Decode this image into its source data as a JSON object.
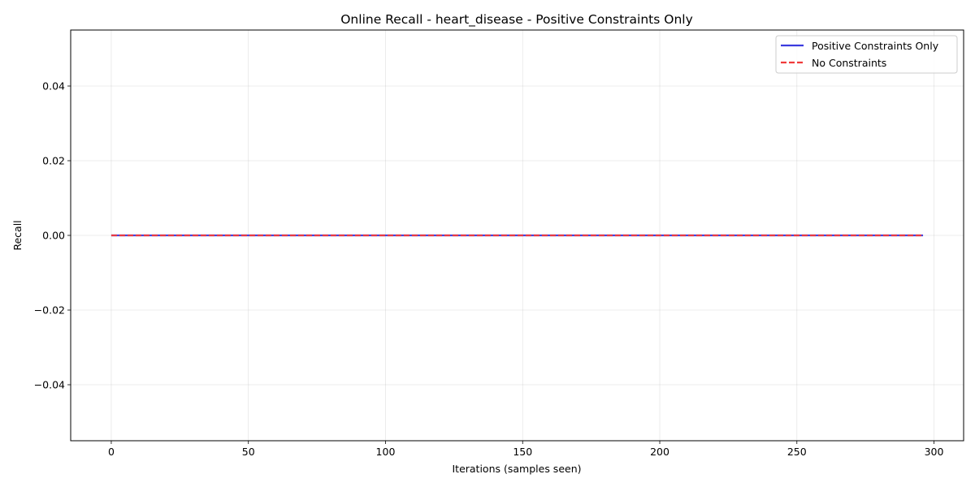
{
  "chart_data": {
    "type": "line",
    "title": "Online Recall - heart_disease - Positive Constraints Only",
    "xlabel": "Iterations (samples seen)",
    "ylabel": "Recall",
    "xlim": [
      -14.8,
      310.8
    ],
    "ylim": [
      -0.055,
      0.055
    ],
    "x_ticks": [
      0,
      50,
      100,
      150,
      200,
      250,
      300
    ],
    "x_tick_labels": [
      "0",
      "50",
      "100",
      "150",
      "200",
      "250",
      "300"
    ],
    "y_ticks": [
      -0.04,
      -0.02,
      0.0,
      0.02,
      0.04
    ],
    "y_tick_labels": [
      "−0.04",
      "−0.02",
      "0.00",
      "0.02",
      "0.04"
    ],
    "grid": true,
    "legend_position": "top-right",
    "series": [
      {
        "name": "Positive Constraints Only",
        "color": "#3b3bdf",
        "style": "solid",
        "x": [
          0,
          296
        ],
        "y": [
          0.0,
          0.0
        ]
      },
      {
        "name": "No Constraints",
        "color": "#f03a3a",
        "style": "dashed",
        "x": [
          0,
          296
        ],
        "y": [
          0.0,
          0.0
        ]
      }
    ]
  }
}
